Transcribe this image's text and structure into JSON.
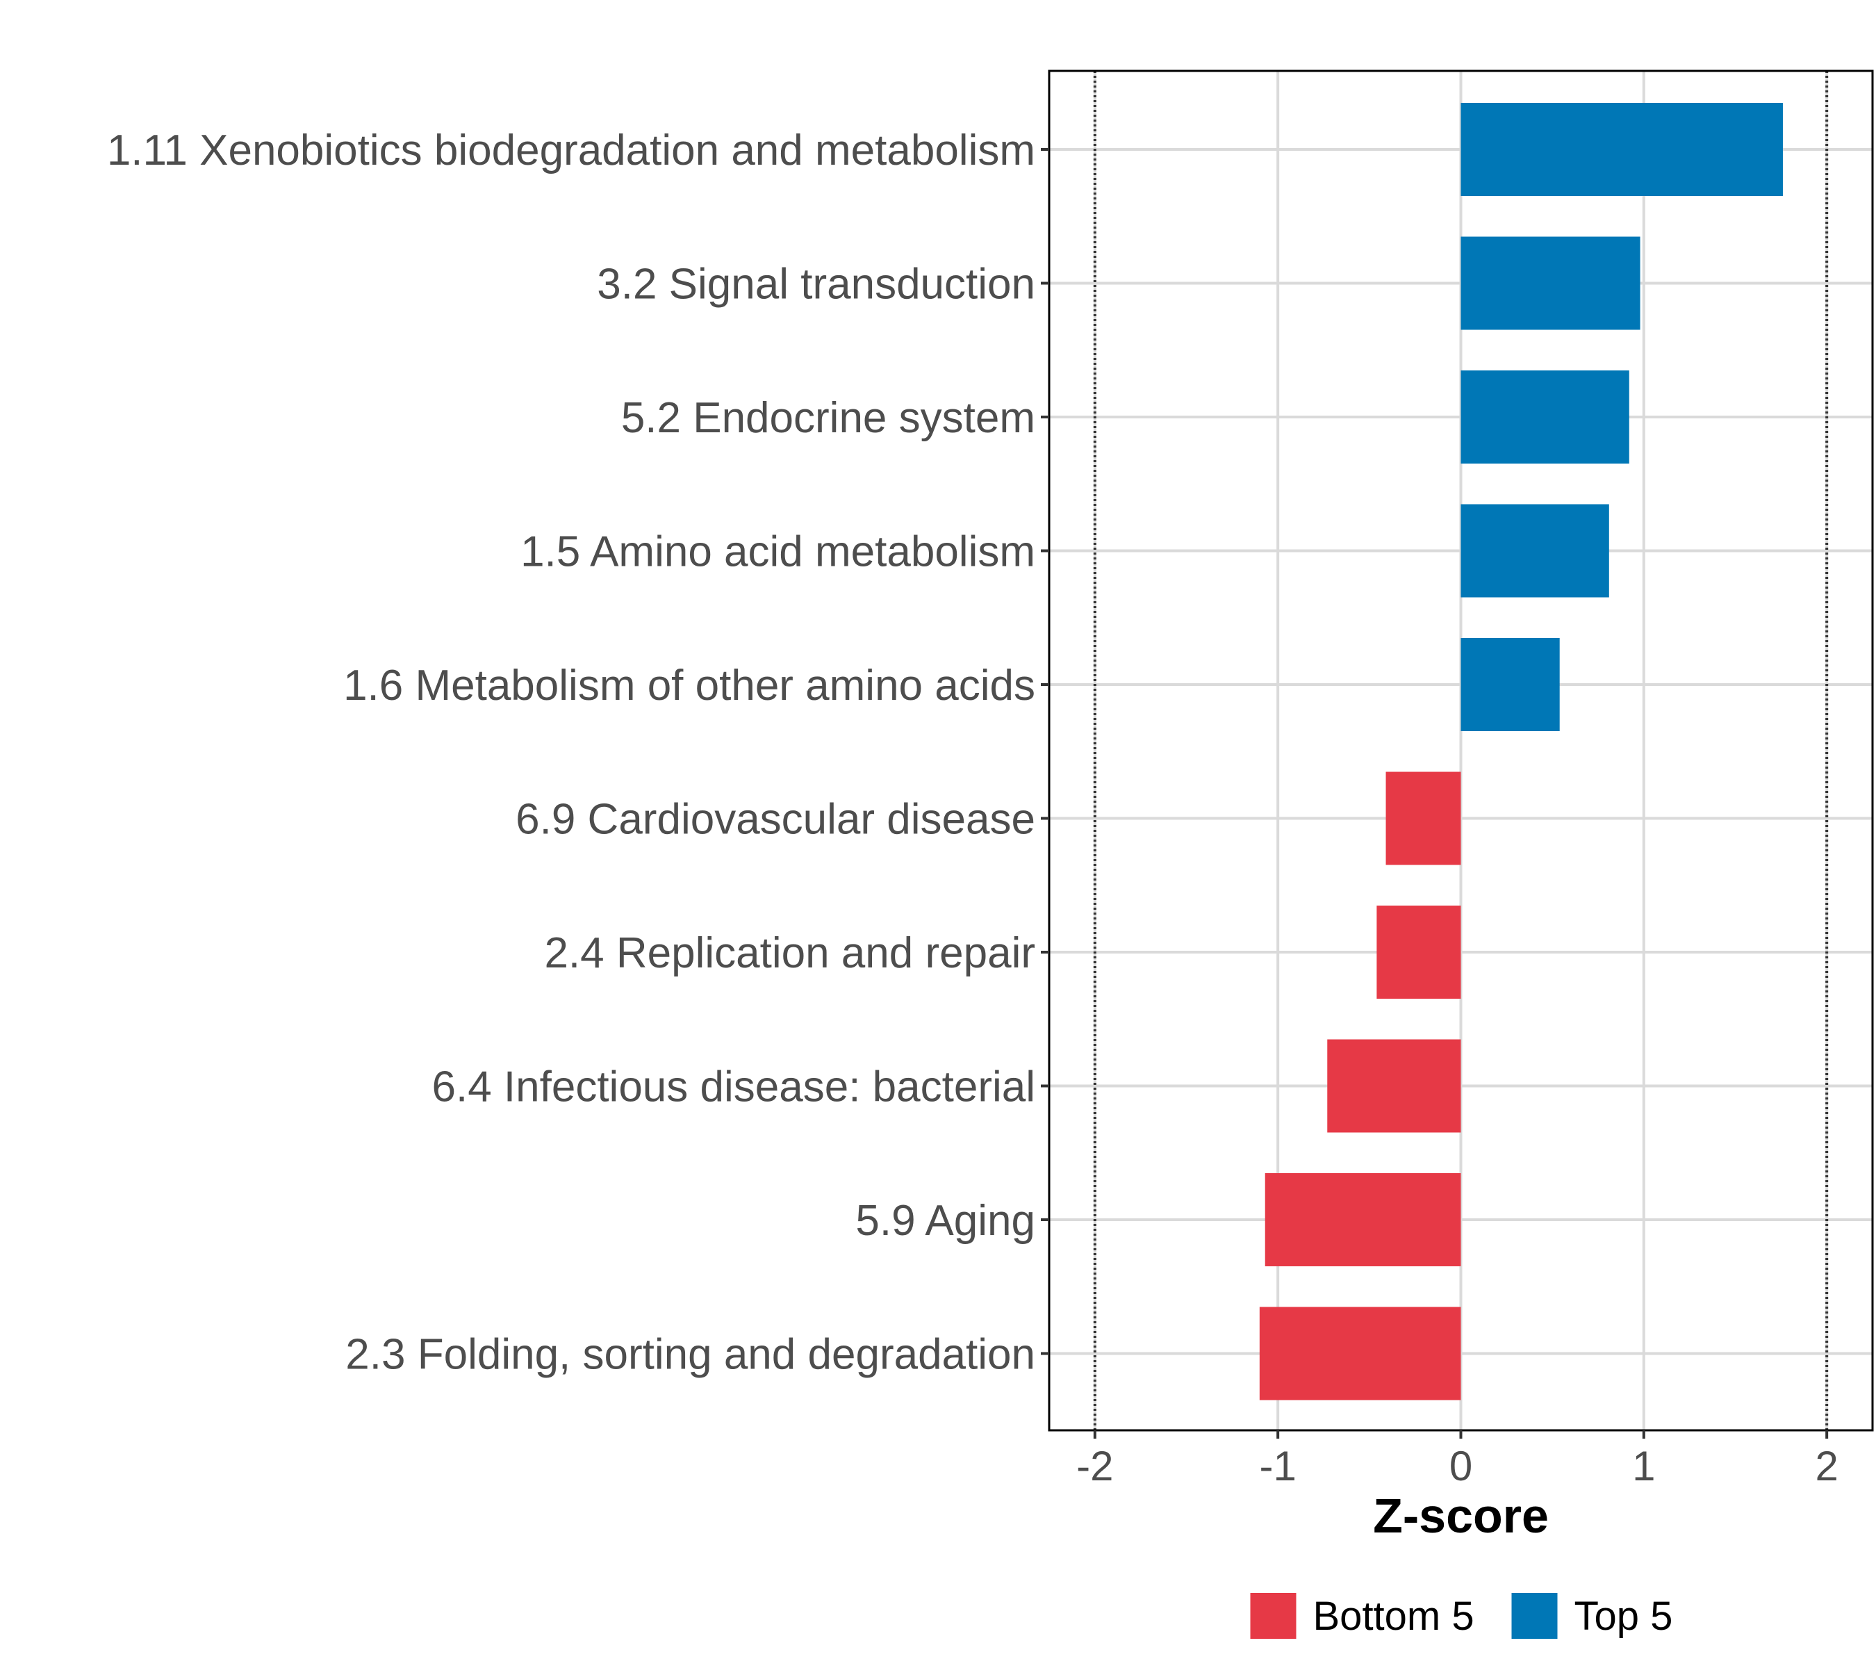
{
  "chart_data": {
    "type": "bar",
    "orientation": "horizontal",
    "categories": [
      "1.11 Xenobiotics biodegradation and metabolism",
      "3.2 Signal transduction",
      "5.2 Endocrine system",
      "1.5 Amino acid metabolism",
      "1.6 Metabolism of other amino acids",
      "6.9 Cardiovascular disease",
      "2.4 Replication and repair",
      "6.4 Infectious disease: bacterial",
      "5.9 Aging",
      "2.3 Folding, sorting and degradation"
    ],
    "values": [
      1.76,
      0.98,
      0.92,
      0.81,
      0.54,
      -0.41,
      -0.46,
      -0.73,
      -1.07,
      -1.1
    ],
    "groups": [
      "Top 5",
      "Top 5",
      "Top 5",
      "Top 5",
      "Top 5",
      "Bottom 5",
      "Bottom 5",
      "Bottom 5",
      "Bottom 5",
      "Bottom 5"
    ],
    "xlabel": "Z-score",
    "ylabel": "",
    "xlim": [
      -2.25,
      2.25
    ],
    "xticks": [
      -2,
      -1,
      0,
      1,
      2
    ],
    "xtick_labels": [
      "-2",
      "-1",
      "0",
      "1",
      "2"
    ],
    "reference_lines": [
      -2,
      2
    ],
    "grid": true,
    "legend": {
      "position": "bottom",
      "entries": [
        {
          "label": "Bottom 5",
          "color": "#e63946"
        },
        {
          "label": "Top 5",
          "color": "#0077b6"
        }
      ]
    }
  }
}
